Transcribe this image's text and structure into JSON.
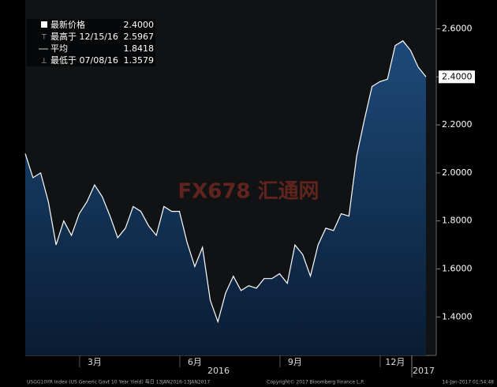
{
  "chart_data": {
    "type": "area",
    "legend": [
      {
        "name": "最新价格",
        "value": "2.4000"
      },
      {
        "name": "最高于 12/15/16",
        "value": "2.5967"
      },
      {
        "name": "平均",
        "value": "1.8418"
      },
      {
        "name": "最低于 07/08/16",
        "value": "1.3579"
      }
    ],
    "watermark": "FX678 汇通网",
    "categories": [
      null,
      null,
      null,
      null,
      null,
      null,
      null,
      null,
      null,
      "3月",
      null,
      null,
      null,
      null,
      null,
      null,
      null,
      null,
      null,
      null,
      null,
      null,
      "6月",
      null,
      null,
      null,
      null,
      null,
      null,
      null,
      null,
      null,
      null,
      null,
      null,
      "9月",
      null,
      null,
      null,
      null,
      null,
      null,
      null,
      null,
      null,
      null,
      null,
      null,
      "12月",
      null,
      null,
      null,
      null
    ],
    "year_labels": [
      "2016",
      "2017"
    ],
    "series": [
      {
        "name": "USGG10YR Index",
        "color": "#ffffff",
        "values": [
          2.08,
          1.98,
          2.0,
          1.88,
          1.7,
          1.8,
          1.74,
          1.83,
          1.88,
          1.95,
          1.9,
          1.82,
          1.73,
          1.77,
          1.86,
          1.84,
          1.78,
          1.74,
          1.86,
          1.84,
          1.84,
          1.71,
          1.61,
          1.69,
          1.47,
          1.38,
          1.5,
          1.57,
          1.51,
          1.53,
          1.52,
          1.56,
          1.56,
          1.58,
          1.54,
          1.7,
          1.66,
          1.57,
          1.7,
          1.77,
          1.76,
          1.83,
          1.82,
          2.07,
          2.22,
          2.36,
          2.38,
          2.39,
          2.53,
          2.55,
          2.51,
          2.44,
          2.4
        ]
      }
    ],
    "ylim": [
      1.24,
      2.72
    ],
    "yticks": [
      {
        "value": 1.4,
        "label": "1.4000"
      },
      {
        "value": 1.6,
        "label": "1.6000"
      },
      {
        "value": 1.8,
        "label": "1.8000"
      },
      {
        "value": 2.0,
        "label": "2.0000"
      },
      {
        "value": 2.2,
        "label": "2.2000"
      },
      {
        "value": 2.4,
        "label": "2.4000"
      },
      {
        "value": 2.6,
        "label": "2.6000"
      }
    ],
    "footer": [
      "USGG10YR Index (US Generic Govt 10 Year Yield) 每日 13JAN2016-13JAN2017",
      "Copyright© 2017 Bloomberg Finance L.P.",
      "14-Jan-2017 01:54:48"
    ]
  }
}
